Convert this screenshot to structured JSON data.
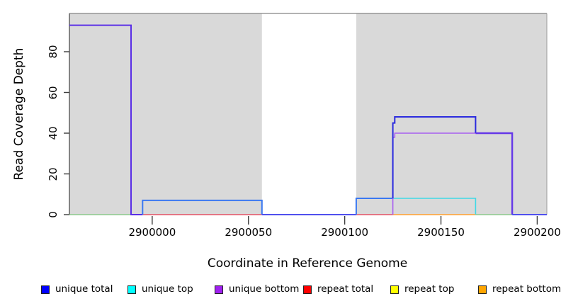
{
  "figure": {
    "background": "#ffffff",
    "shaded_region_color": "#d9d9d9",
    "frame": {
      "top_color": "#848484",
      "left_color": "#4d4d4d",
      "right_color": "#9a9a9a",
      "tick_color": "#3c3c3c"
    }
  },
  "chart_data": {
    "type": "line",
    "step": true,
    "title": "",
    "xlabel": "Coordinate in Reference Genome",
    "ylabel": "Read Coverage Depth",
    "xlim": [
      2899957,
      2900205
    ],
    "ylim": [
      0,
      99
    ],
    "grid": false,
    "legend_position": "bottom",
    "x_ticks": [
      2900000,
      2900050,
      2900100,
      2900150,
      2900200
    ],
    "y_ticks": [
      0,
      20,
      40,
      60,
      80
    ],
    "shaded_x_regions": [
      [
        2899957,
        2900057
      ],
      [
        2900106,
        2900205
      ]
    ],
    "series": [
      {
        "name": "unique total",
        "color": "#0000ff",
        "points": [
          [
            2899957,
            93
          ],
          [
            2899989,
            93
          ],
          [
            2899989,
            0
          ],
          [
            2899995,
            0
          ],
          [
            2899995,
            7
          ],
          [
            2900057,
            7
          ],
          [
            2900057,
            0
          ],
          [
            2900106,
            0
          ],
          [
            2900106,
            8
          ],
          [
            2900125,
            8
          ],
          [
            2900125,
            45
          ],
          [
            2900126,
            45
          ],
          [
            2900126,
            48
          ],
          [
            2900168,
            48
          ],
          [
            2900168,
            40
          ],
          [
            2900187,
            40
          ],
          [
            2900187,
            0
          ],
          [
            2900205,
            0
          ]
        ]
      },
      {
        "name": "unique top",
        "color": "#00ffff",
        "points": [
          [
            2899957,
            0
          ],
          [
            2900106,
            0
          ],
          [
            2900106,
            8
          ],
          [
            2900168,
            8
          ],
          [
            2900168,
            0
          ],
          [
            2900205,
            0
          ]
        ]
      },
      {
        "name": "unique bottom",
        "color": "#a020f0",
        "points": [
          [
            2899957,
            93
          ],
          [
            2899989,
            93
          ],
          [
            2899989,
            0
          ],
          [
            2900125,
            0
          ],
          [
            2900125,
            38
          ],
          [
            2900126,
            38
          ],
          [
            2900126,
            40
          ],
          [
            2900187,
            40
          ],
          [
            2900187,
            0
          ],
          [
            2900205,
            0
          ]
        ]
      },
      {
        "name": "repeat total",
        "color": "#ff0000",
        "points": [
          [
            2899957,
            0
          ],
          [
            2900205,
            0
          ]
        ]
      },
      {
        "name": "repeat top",
        "color": "#ffff00",
        "points": [
          [
            2899957,
            0
          ],
          [
            2900205,
            0
          ]
        ]
      },
      {
        "name": "repeat bottom",
        "color": "#ffa500",
        "points": [
          [
            2899957,
            0
          ],
          [
            2900205,
            0
          ]
        ]
      }
    ],
    "visible_segments": [
      {
        "color": "#8cc98c",
        "width": 1.4,
        "points": [
          [
            2899957,
            0
          ],
          [
            2899989,
            0
          ]
        ]
      },
      {
        "color": "#e35065",
        "width": 1.4,
        "points": [
          [
            2899995,
            0
          ],
          [
            2900057,
            0
          ]
        ]
      },
      {
        "color": "#5a2fe6",
        "width": 2.0,
        "points": [
          [
            2899957,
            93
          ],
          [
            2899989,
            93
          ],
          [
            2899989,
            0
          ],
          [
            2899995,
            0
          ]
        ]
      },
      {
        "color": "#3a78f2",
        "width": 2.0,
        "points": [
          [
            2899995,
            0
          ],
          [
            2899995,
            7
          ],
          [
            2900057,
            7
          ],
          [
            2900057,
            0
          ]
        ]
      },
      {
        "color": "#5050ee",
        "width": 2.0,
        "points": [
          [
            2900057,
            0
          ],
          [
            2900106,
            0
          ]
        ]
      },
      {
        "color": "#e35065",
        "width": 1.4,
        "points": [
          [
            2900106,
            0
          ],
          [
            2900125,
            0
          ]
        ]
      },
      {
        "color": "#3a78f2",
        "width": 2.0,
        "points": [
          [
            2900106,
            0
          ],
          [
            2900106,
            8
          ],
          [
            2900125,
            8
          ]
        ]
      },
      {
        "color": "#ff9f2e",
        "width": 1.6,
        "points": [
          [
            2900125,
            0
          ],
          [
            2900168,
            0
          ]
        ]
      },
      {
        "color": "#3fd9e6",
        "width": 1.6,
        "points": [
          [
            2900125,
            8
          ],
          [
            2900168,
            8
          ],
          [
            2900168,
            0
          ]
        ]
      },
      {
        "color": "#a85ff0",
        "width": 1.6,
        "points": [
          [
            2900125,
            0
          ],
          [
            2900125,
            38
          ],
          [
            2900126,
            38
          ],
          [
            2900126,
            40
          ],
          [
            2900168,
            40
          ]
        ]
      },
      {
        "color": "#2b2bde",
        "width": 2.0,
        "points": [
          [
            2900125,
            8
          ],
          [
            2900125,
            45
          ],
          [
            2900126,
            45
          ],
          [
            2900126,
            48
          ],
          [
            2900168,
            48
          ],
          [
            2900168,
            40
          ]
        ]
      },
      {
        "color": "#8cc98c",
        "width": 1.4,
        "points": [
          [
            2900168,
            0
          ],
          [
            2900187,
            0
          ]
        ]
      },
      {
        "color": "#6538e8",
        "width": 2.4,
        "points": [
          [
            2900168,
            40
          ],
          [
            2900187,
            40
          ],
          [
            2900187,
            0
          ]
        ]
      },
      {
        "color": "#5050ee",
        "width": 2.0,
        "points": [
          [
            2900187,
            0
          ],
          [
            2900205,
            0
          ]
        ]
      }
    ]
  },
  "legend": {
    "items": [
      {
        "label": "unique total",
        "color": "#0000ff"
      },
      {
        "label": "unique top",
        "color": "#00ffff"
      },
      {
        "label": "unique bottom",
        "color": "#a020f0"
      },
      {
        "label": "repeat total",
        "color": "#ff0000"
      },
      {
        "label": "repeat top",
        "color": "#ffff00"
      },
      {
        "label": "repeat bottom",
        "color": "#ffa500"
      }
    ]
  }
}
